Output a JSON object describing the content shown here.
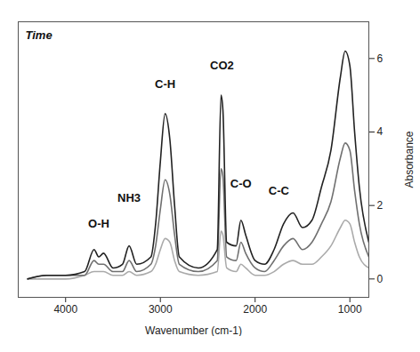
{
  "chart_data": {
    "type": "line",
    "xlabel": "Wavenumber (cm-1)",
    "ylabel": "Absorbance",
    "zlabel": "Time",
    "x": [
      4400,
      4200,
      4000,
      3800,
      3700,
      3650,
      3600,
      3500,
      3400,
      3330,
      3250,
      3100,
      3050,
      3000,
      2950,
      2900,
      2850,
      2800,
      2600,
      2400,
      2360,
      2340,
      2300,
      2200,
      2150,
      2100,
      2000,
      1900,
      1800,
      1700,
      1600,
      1500,
      1400,
      1300,
      1200,
      1100,
      1050,
      1000,
      950,
      900,
      800
    ],
    "series": [
      {
        "color": "#aaaaaa",
        "values": [
          0,
          0,
          0,
          0.1,
          0.2,
          0.2,
          0.2,
          0.1,
          0.1,
          0.2,
          0.1,
          0.2,
          0.4,
          0.8,
          1.1,
          1.0,
          0.5,
          0.2,
          0.1,
          0.2,
          1.3,
          1.2,
          0.3,
          0.2,
          0.4,
          0.3,
          0.1,
          0.1,
          0.2,
          0.4,
          0.5,
          0.4,
          0.4,
          0.6,
          0.9,
          1.4,
          1.6,
          1.5,
          1.0,
          0.6,
          0.3
        ]
      },
      {
        "color": "#707070",
        "values": [
          0,
          0.1,
          0.1,
          0.1,
          0.5,
          0.4,
          0.4,
          0.2,
          0.2,
          0.5,
          0.2,
          0.4,
          0.9,
          1.9,
          2.7,
          2.3,
          1.2,
          0.4,
          0.2,
          0.5,
          3.0,
          2.8,
          0.6,
          0.5,
          1.0,
          0.7,
          0.3,
          0.2,
          0.5,
          0.9,
          1.1,
          0.8,
          1.0,
          1.5,
          2.1,
          3.3,
          3.7,
          3.5,
          2.4,
          1.5,
          0.6
        ]
      },
      {
        "color": "#222222",
        "values": [
          0,
          0.1,
          0.1,
          0.2,
          0.8,
          0.6,
          0.7,
          0.3,
          0.4,
          0.9,
          0.4,
          0.6,
          1.5,
          3.2,
          4.5,
          3.8,
          2.0,
          0.6,
          0.3,
          0.8,
          5.0,
          4.6,
          1.0,
          0.9,
          1.6,
          1.2,
          0.5,
          0.4,
          0.8,
          1.5,
          1.8,
          1.4,
          1.6,
          2.5,
          3.5,
          5.5,
          6.2,
          5.8,
          4.0,
          2.5,
          1.0
        ]
      }
    ],
    "annotations": [
      {
        "text": "O-H",
        "x": 3650,
        "y": 1.5
      },
      {
        "text": "NH3",
        "x": 3330,
        "y": 2.2
      },
      {
        "text": "C-H",
        "x": 2950,
        "y": 5.3
      },
      {
        "text": "CO2",
        "x": 2350,
        "y": 5.8
      },
      {
        "text": "C-O",
        "x": 2150,
        "y": 2.6
      },
      {
        "text": "C-C",
        "x": 1750,
        "y": 2.4
      }
    ],
    "xlim": [
      4500,
      800
    ],
    "xticks": [
      4000,
      3000,
      2000,
      1000
    ],
    "ylim": [
      -0.5,
      7
    ],
    "yticks": [
      0,
      2,
      4,
      6
    ],
    "grid": false
  }
}
